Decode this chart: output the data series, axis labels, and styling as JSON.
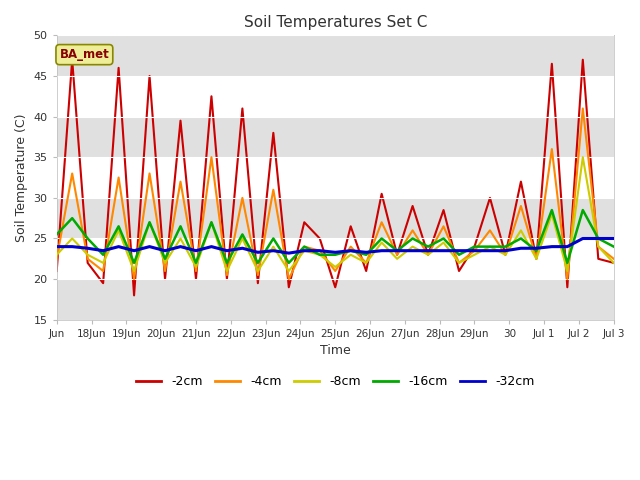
{
  "title": "Soil Temperatures Set C",
  "xlabel": "Time",
  "ylabel": "Soil Temperature (C)",
  "ylim": [
    15,
    50
  ],
  "yticks": [
    15,
    20,
    25,
    30,
    35,
    40,
    45,
    50
  ],
  "xtick_labels": [
    "Jun",
    "18Jun",
    "19Jun",
    "20Jun",
    "21Jun",
    "22Jun",
    "23Jun",
    "24Jun",
    "25Jun",
    "26Jun",
    "27Jun",
    "28Jun",
    "29Jun",
    "30",
    "Jul 1",
    "Jul 2",
    "Jul 3"
  ],
  "legend_labels": [
    "-2cm",
    "-4cm",
    "-8cm",
    "-16cm",
    "-32cm"
  ],
  "legend_colors": [
    "#cc0000",
    "#ff8800",
    "#cccc00",
    "#00aa00",
    "#0000cc"
  ],
  "fig_bg_color": "#ffffff",
  "plot_bg_color": "#ffffff",
  "band_color": "#e0e0e0",
  "annotation_text": "BA_met",
  "annotation_bg": "#eeee99",
  "annotation_border": "#888800",
  "line_widths": [
    1.5,
    1.5,
    1.5,
    1.8,
    2.2
  ],
  "series_2cm": [
    21.0,
    47.0,
    22.0,
    19.5,
    46.0,
    18.0,
    45.0,
    20.0,
    39.5,
    20.0,
    42.5,
    20.0,
    41.0,
    19.5,
    38.0,
    19.0,
    27.0,
    25.0,
    19.0,
    26.5,
    21.0,
    30.5,
    23.0,
    29.0,
    23.0,
    28.5,
    21.0,
    24.0,
    30.0,
    23.0,
    32.0,
    22.5,
    46.5,
    19.0,
    47.0,
    22.5,
    22.0
  ],
  "series_4cm": [
    22.5,
    33.0,
    22.5,
    21.0,
    32.5,
    20.0,
    33.0,
    21.0,
    32.0,
    21.0,
    35.0,
    20.5,
    30.0,
    20.5,
    31.0,
    20.0,
    24.0,
    23.5,
    21.0,
    24.0,
    22.0,
    27.0,
    23.0,
    26.0,
    23.0,
    26.5,
    22.0,
    23.5,
    26.0,
    23.0,
    29.0,
    22.5,
    36.0,
    20.0,
    41.0,
    24.0,
    22.5
  ],
  "series_8cm": [
    23.0,
    25.0,
    23.0,
    22.0,
    26.0,
    21.0,
    27.0,
    22.0,
    25.0,
    21.5,
    27.0,
    21.0,
    25.0,
    21.0,
    24.0,
    21.0,
    23.5,
    23.0,
    21.5,
    23.0,
    22.0,
    24.5,
    22.5,
    24.0,
    23.0,
    24.5,
    22.0,
    23.0,
    24.0,
    23.0,
    26.0,
    22.5,
    28.0,
    21.0,
    35.0,
    24.0,
    22.0
  ],
  "series_16cm": [
    25.5,
    27.5,
    25.0,
    23.0,
    26.5,
    22.0,
    27.0,
    22.5,
    26.5,
    22.0,
    27.0,
    22.0,
    25.5,
    22.0,
    25.0,
    22.0,
    24.0,
    23.0,
    23.0,
    23.5,
    23.0,
    25.0,
    23.5,
    25.0,
    24.0,
    25.0,
    23.0,
    24.0,
    24.0,
    24.0,
    25.0,
    23.5,
    28.5,
    22.0,
    28.5,
    25.0,
    24.0
  ],
  "series_32cm": [
    24.0,
    24.0,
    23.8,
    23.5,
    24.0,
    23.5,
    24.0,
    23.5,
    24.0,
    23.5,
    24.0,
    23.5,
    23.8,
    23.3,
    23.5,
    23.2,
    23.5,
    23.5,
    23.3,
    23.5,
    23.3,
    23.5,
    23.5,
    23.5,
    23.5,
    23.5,
    23.5,
    23.5,
    23.5,
    23.5,
    23.8,
    23.8,
    24.0,
    24.0,
    25.0,
    25.0,
    25.0
  ]
}
